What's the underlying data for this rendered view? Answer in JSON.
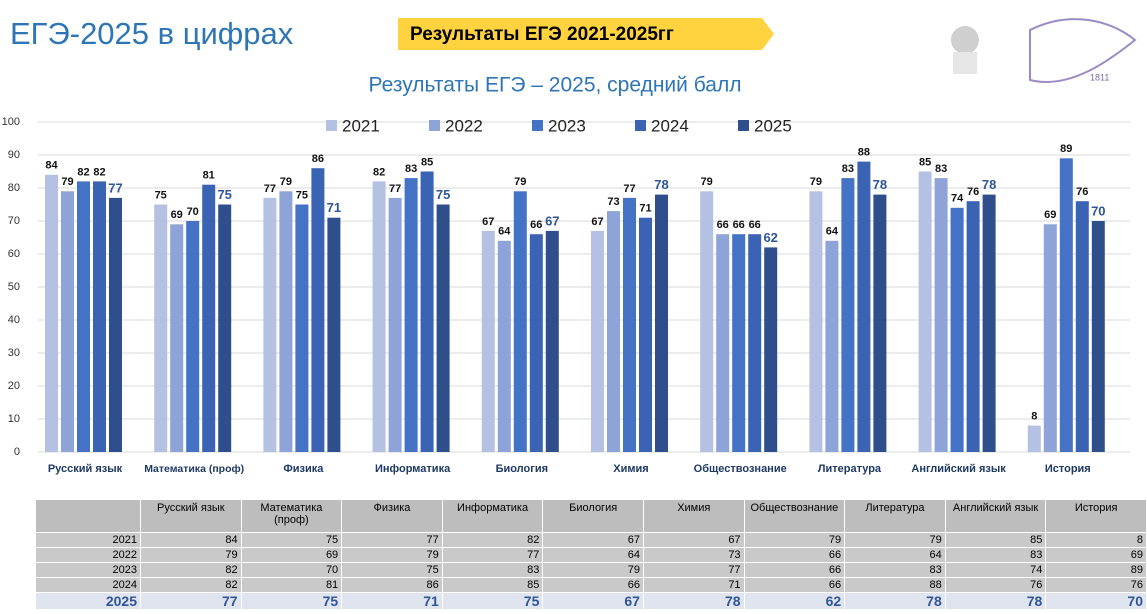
{
  "header": {
    "title": "ЕГЭ-2025 в цифрах",
    "badge": "Результаты ЕГЭ 2021-2025гг",
    "logo_text": "1811"
  },
  "chart_data": {
    "type": "bar",
    "title": "Результаты ЕГЭ – 2025, средний балл",
    "categories": [
      "Русский язык",
      "Математика (проф)",
      "Физика",
      "Информатика",
      "Биология",
      "Химия",
      "Обществознание",
      "Литература",
      "Английский язык",
      "История"
    ],
    "series": [
      {
        "name": "2021",
        "color": "#b4c1e2",
        "values": [
          84,
          75,
          77,
          82,
          67,
          67,
          79,
          79,
          85,
          8
        ]
      },
      {
        "name": "2022",
        "color": "#8ea3d8",
        "values": [
          79,
          69,
          79,
          77,
          64,
          73,
          66,
          64,
          83,
          69
        ]
      },
      {
        "name": "2023",
        "color": "#4472c4",
        "values": [
          82,
          70,
          75,
          83,
          79,
          77,
          66,
          83,
          74,
          89
        ]
      },
      {
        "name": "2024",
        "color": "#3b63b3",
        "values": [
          82,
          81,
          86,
          85,
          66,
          71,
          66,
          88,
          76,
          76
        ]
      },
      {
        "name": "2025",
        "color": "#2f4f8c",
        "values": [
          77,
          75,
          71,
          75,
          67,
          78,
          62,
          78,
          78,
          70
        ]
      }
    ],
    "ylim": [
      0,
      100
    ],
    "yticks": [
      0,
      10,
      20,
      30,
      40,
      50,
      60,
      70,
      80,
      90,
      100
    ],
    "grid": true,
    "legend": "top"
  }
}
